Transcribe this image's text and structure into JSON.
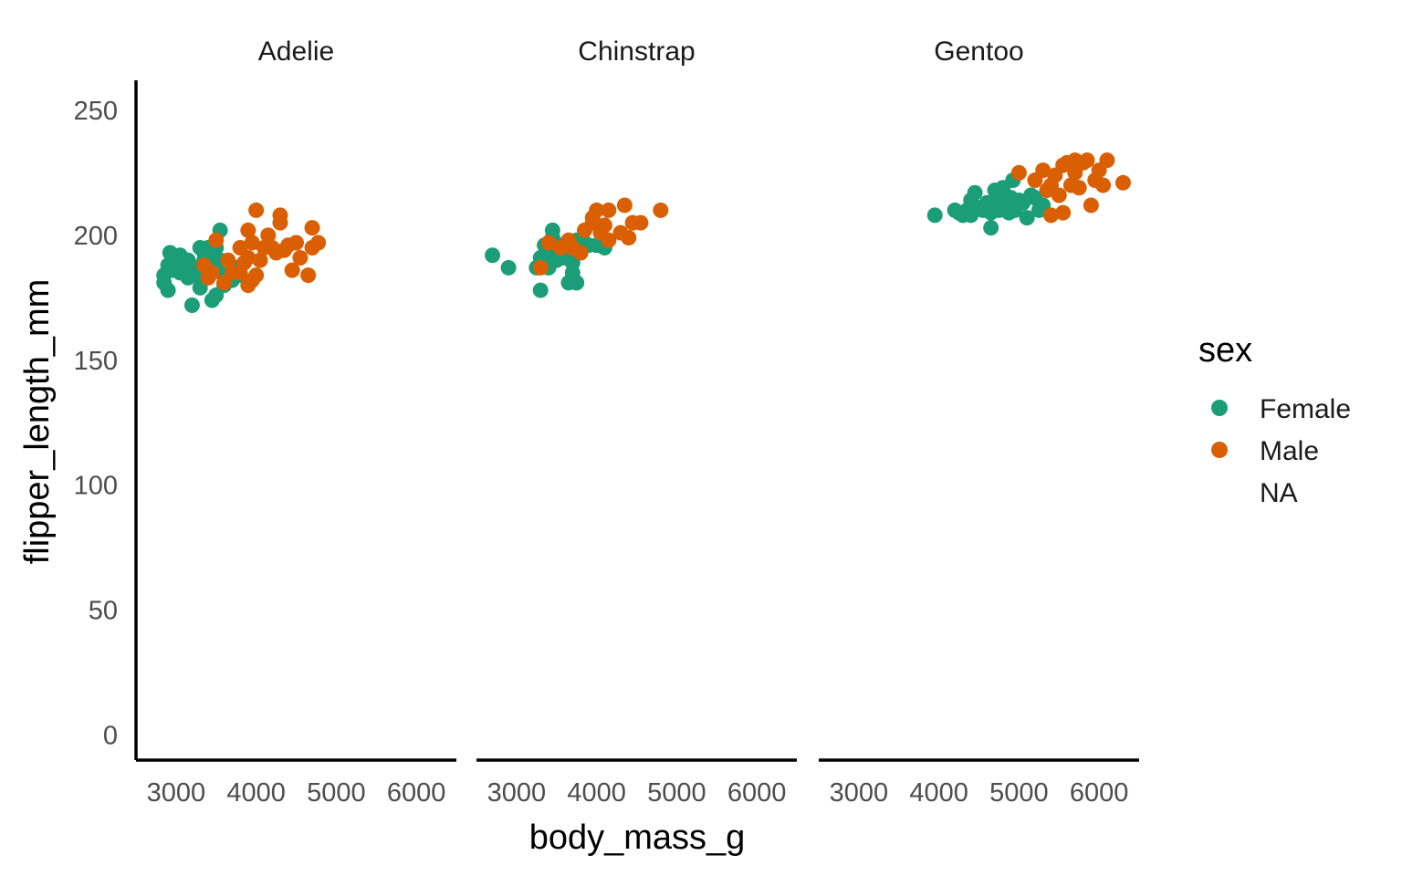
{
  "chart_data": {
    "type": "scatter",
    "xlabel": "body_mass_g",
    "ylabel": "flipper_length_mm",
    "xlim": [
      2500,
      6500
    ],
    "ylim": [
      -10,
      262
    ],
    "xticks": [
      3000,
      4000,
      5000,
      6000
    ],
    "xtick_labels": [
      "3000",
      "4000",
      "5000",
      "6000"
    ],
    "yticks": [
      0,
      50,
      100,
      150,
      200,
      250
    ],
    "ytick_labels": [
      "0",
      "50",
      "100",
      "150",
      "200",
      "250"
    ],
    "grid": false,
    "legend": {
      "title": "sex",
      "placement": "right",
      "entries": [
        {
          "label": "Female",
          "color": "#1B9E77"
        },
        {
          "label": "Male",
          "color": "#D95F02"
        },
        {
          "label": "NA",
          "color": null
        }
      ]
    },
    "panels": [
      {
        "label": "Adelie",
        "series": [
          {
            "name": "Female",
            "color": "#1B9E77",
            "points": [
              [
                2850,
                184
              ],
              [
                2850,
                181
              ],
              [
                2900,
                178
              ],
              [
                2900,
                188
              ],
              [
                2925,
                193
              ],
              [
                2950,
                186
              ],
              [
                3000,
                190
              ],
              [
                3050,
                192
              ],
              [
                3050,
                185
              ],
              [
                3100,
                188
              ],
              [
                3150,
                190
              ],
              [
                3150,
                183
              ],
              [
                3200,
                187
              ],
              [
                3200,
                172
              ],
              [
                3250,
                184
              ],
              [
                3300,
                195
              ],
              [
                3300,
                179
              ],
              [
                3325,
                188
              ],
              [
                3350,
                193
              ],
              [
                3350,
                190
              ],
              [
                3400,
                191
              ],
              [
                3400,
                186
              ],
              [
                3400,
                195
              ],
              [
                3450,
                174
              ],
              [
                3450,
                185
              ],
              [
                3500,
                176
              ],
              [
                3500,
                187
              ],
              [
                3500,
                195
              ],
              [
                3550,
                202
              ],
              [
                3550,
                190
              ],
              [
                3600,
                180
              ],
              [
                3600,
                184
              ],
              [
                3700,
                186
              ],
              [
                3700,
                182
              ],
              [
                3750,
                187
              ],
              [
                3800,
                184
              ]
            ]
          },
          {
            "name": "Male",
            "color": "#D95F02",
            "points": [
              [
                3350,
                188
              ],
              [
                3400,
                183
              ],
              [
                3450,
                185
              ],
              [
                3500,
                198
              ],
              [
                3600,
                181
              ],
              [
                3650,
                190
              ],
              [
                3700,
                185
              ],
              [
                3800,
                195
              ],
              [
                3800,
                185
              ],
              [
                3850,
                189
              ],
              [
                3900,
                191
              ],
              [
                3900,
                180
              ],
              [
                3900,
                202
              ],
              [
                3950,
                197
              ],
              [
                3950,
                182
              ],
              [
                4000,
                210
              ],
              [
                4000,
                184
              ],
              [
                4050,
                190
              ],
              [
                4100,
                195
              ],
              [
                4150,
                200
              ],
              [
                4200,
                195
              ],
              [
                4250,
                193
              ],
              [
                4300,
                205
              ],
              [
                4300,
                208
              ],
              [
                4350,
                194
              ],
              [
                4400,
                196
              ],
              [
                4450,
                186
              ],
              [
                4500,
                197
              ],
              [
                4550,
                191
              ],
              [
                4650,
                184
              ],
              [
                4700,
                195
              ],
              [
                4700,
                203
              ],
              [
                4775,
                197
              ]
            ]
          }
        ]
      },
      {
        "label": "Chinstrap",
        "series": [
          {
            "name": "Female",
            "color": "#1B9E77",
            "points": [
              [
                2700,
                192
              ],
              [
                2900,
                187
              ],
              [
                3250,
                187
              ],
              [
                3300,
                178
              ],
              [
                3300,
                191
              ],
              [
                3350,
                196
              ],
              [
                3400,
                193
              ],
              [
                3400,
                187
              ],
              [
                3450,
                202
              ],
              [
                3450,
                199
              ],
              [
                3500,
                190
              ],
              [
                3550,
                196
              ],
              [
                3600,
                191
              ],
              [
                3650,
                195
              ],
              [
                3650,
                181
              ],
              [
                3700,
                189
              ],
              [
                3700,
                185
              ],
              [
                3750,
                198
              ],
              [
                3750,
                181
              ],
              [
                3800,
                193
              ],
              [
                3850,
                197
              ],
              [
                3900,
                196
              ],
              [
                4000,
                196
              ],
              [
                4100,
                195
              ]
            ]
          },
          {
            "name": "Male",
            "color": "#D95F02",
            "points": [
              [
                3300,
                187
              ],
              [
                3400,
                197
              ],
              [
                3550,
                195
              ],
              [
                3650,
                198
              ],
              [
                3700,
                195
              ],
              [
                3800,
                193
              ],
              [
                3850,
                202
              ],
              [
                3950,
                207
              ],
              [
                3950,
                205
              ],
              [
                4000,
                210
              ],
              [
                4050,
                201
              ],
              [
                4100,
                204
              ],
              [
                4150,
                210
              ],
              [
                4150,
                198
              ],
              [
                4300,
                201
              ],
              [
                4350,
                212
              ],
              [
                4400,
                199
              ],
              [
                4450,
                205
              ],
              [
                4550,
                205
              ],
              [
                4800,
                210
              ]
            ]
          }
        ]
      },
      {
        "label": "Gentoo",
        "series": [
          {
            "name": "Female",
            "color": "#1B9E77",
            "points": [
              [
                3950,
                208
              ],
              [
                4200,
                210
              ],
              [
                4250,
                209
              ],
              [
                4300,
                208
              ],
              [
                4350,
                210
              ],
              [
                4400,
                208
              ],
              [
                4400,
                214
              ],
              [
                4450,
                217
              ],
              [
                4500,
                211
              ],
              [
                4550,
                210
              ],
              [
                4600,
                213
              ],
              [
                4650,
                203
              ],
              [
                4650,
                209
              ],
              [
                4700,
                212
              ],
              [
                4700,
                218
              ],
              [
                4750,
                210
              ],
              [
                4750,
                216
              ],
              [
                4800,
                219
              ],
              [
                4850,
                212
              ],
              [
                4875,
                209
              ],
              [
                4900,
                215
              ],
              [
                4925,
                222
              ],
              [
                4950,
                210
              ],
              [
                5000,
                214
              ],
              [
                5050,
                213
              ],
              [
                5100,
                207
              ],
              [
                5150,
                216
              ],
              [
                5200,
                215
              ],
              [
                5250,
                210
              ],
              [
                5300,
                212
              ]
            ]
          },
          {
            "name": "Male",
            "color": "#D95F02",
            "points": [
              [
                5000,
                225
              ],
              [
                5200,
                222
              ],
              [
                5300,
                226
              ],
              [
                5350,
                218
              ],
              [
                5400,
                208
              ],
              [
                5400,
                220
              ],
              [
                5450,
                224
              ],
              [
                5500,
                216
              ],
              [
                5550,
                228
              ],
              [
                5550,
                209
              ],
              [
                5600,
                229
              ],
              [
                5650,
                220
              ],
              [
                5700,
                230
              ],
              [
                5700,
                225
              ],
              [
                5750,
                219
              ],
              [
                5800,
                229
              ],
              [
                5850,
                230
              ],
              [
                5900,
                212
              ],
              [
                5950,
                222
              ],
              [
                6000,
                226
              ],
              [
                6050,
                220
              ],
              [
                6100,
                230
              ],
              [
                6300,
                221
              ]
            ]
          }
        ]
      }
    ]
  }
}
